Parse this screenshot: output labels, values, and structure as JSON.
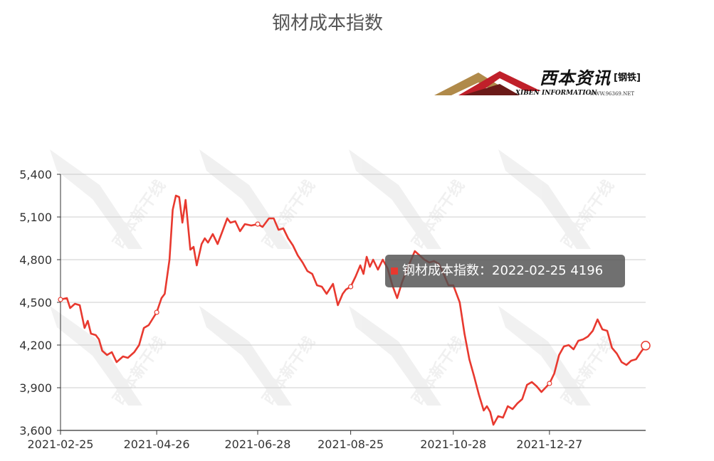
{
  "title": "钢材成本指数",
  "logo": {
    "cn": "西本资讯",
    "tag": "[钢铁]",
    "en": "XIBEN INFORMATION",
    "url": "WWW.96369.NET",
    "watermark": "西本新干线"
  },
  "tooltip": {
    "series": "钢材成本指数",
    "date": "2022-02-25",
    "value": "4196",
    "separator": "："
  },
  "chart_data": {
    "type": "line",
    "title": "钢材成本指数",
    "line_color": "#e8392f",
    "ylim": [
      3600,
      5400
    ],
    "yticks": [
      3600,
      3900,
      4200,
      4500,
      4800,
      5100,
      5400
    ],
    "ytick_labels": [
      "3,600",
      "3,900",
      "4,200",
      "4,500",
      "4,800",
      "5,100",
      "5,400"
    ],
    "xtick_labels": [
      "2021-02-25",
      "2021-04-26",
      "2021-06-28",
      "2021-08-25",
      "2021-10-28",
      "2021-12-27"
    ],
    "grid": true,
    "points": [
      [
        "2021-02-25",
        4520
      ],
      [
        "2021-03-01",
        4530
      ],
      [
        "2021-03-03",
        4460
      ],
      [
        "2021-03-06",
        4490
      ],
      [
        "2021-03-09",
        4480
      ],
      [
        "2021-03-12",
        4320
      ],
      [
        "2021-03-14",
        4370
      ],
      [
        "2021-03-16",
        4280
      ],
      [
        "2021-03-19",
        4270
      ],
      [
        "2021-03-21",
        4240
      ],
      [
        "2021-03-23",
        4160
      ],
      [
        "2021-03-26",
        4130
      ],
      [
        "2021-03-29",
        4150
      ],
      [
        "2021-04-01",
        4080
      ],
      [
        "2021-04-05",
        4120
      ],
      [
        "2021-04-08",
        4110
      ],
      [
        "2021-04-12",
        4150
      ],
      [
        "2021-04-15",
        4200
      ],
      [
        "2021-04-18",
        4320
      ],
      [
        "2021-04-21",
        4340
      ],
      [
        "2021-04-26",
        4430
      ],
      [
        "2021-04-29",
        4530
      ],
      [
        "2021-05-01",
        4560
      ],
      [
        "2021-05-04",
        4800
      ],
      [
        "2021-05-06",
        5150
      ],
      [
        "2021-05-08",
        5250
      ],
      [
        "2021-05-10",
        5240
      ],
      [
        "2021-05-12",
        5060
      ],
      [
        "2021-05-14",
        5220
      ],
      [
        "2021-05-17",
        4870
      ],
      [
        "2021-05-19",
        4890
      ],
      [
        "2021-05-21",
        4760
      ],
      [
        "2021-05-24",
        4910
      ],
      [
        "2021-05-26",
        4950
      ],
      [
        "2021-05-28",
        4920
      ],
      [
        "2021-05-31",
        4980
      ],
      [
        "2021-06-03",
        4910
      ],
      [
        "2021-06-06",
        5000
      ],
      [
        "2021-06-09",
        5090
      ],
      [
        "2021-06-11",
        5060
      ],
      [
        "2021-06-14",
        5070
      ],
      [
        "2021-06-17",
        5000
      ],
      [
        "2021-06-20",
        5050
      ],
      [
        "2021-06-24",
        5040
      ],
      [
        "2021-06-28",
        5050
      ],
      [
        "2021-07-01",
        5030
      ],
      [
        "2021-07-05",
        5090
      ],
      [
        "2021-07-08",
        5090
      ],
      [
        "2021-07-11",
        5010
      ],
      [
        "2021-07-14",
        5020
      ],
      [
        "2021-07-17",
        4950
      ],
      [
        "2021-07-20",
        4900
      ],
      [
        "2021-07-23",
        4830
      ],
      [
        "2021-07-26",
        4780
      ],
      [
        "2021-07-29",
        4720
      ],
      [
        "2021-08-01",
        4700
      ],
      [
        "2021-08-04",
        4620
      ],
      [
        "2021-08-07",
        4610
      ],
      [
        "2021-08-10",
        4560
      ],
      [
        "2021-08-14",
        4630
      ],
      [
        "2021-08-17",
        4480
      ],
      [
        "2021-08-20",
        4560
      ],
      [
        "2021-08-22",
        4590
      ],
      [
        "2021-08-25",
        4610
      ],
      [
        "2021-08-28",
        4680
      ],
      [
        "2021-08-31",
        4760
      ],
      [
        "2021-09-02",
        4700
      ],
      [
        "2021-09-04",
        4820
      ],
      [
        "2021-09-06",
        4750
      ],
      [
        "2021-09-08",
        4800
      ],
      [
        "2021-09-11",
        4730
      ],
      [
        "2021-09-14",
        4800
      ],
      [
        "2021-09-17",
        4740
      ],
      [
        "2021-09-20",
        4620
      ],
      [
        "2021-09-23",
        4530
      ],
      [
        "2021-09-26",
        4640
      ],
      [
        "2021-09-29",
        4730
      ],
      [
        "2021-10-01",
        4780
      ],
      [
        "2021-10-04",
        4860
      ],
      [
        "2021-10-07",
        4830
      ],
      [
        "2021-10-10",
        4800
      ],
      [
        "2021-10-13",
        4780
      ],
      [
        "2021-10-16",
        4790
      ],
      [
        "2021-10-19",
        4770
      ],
      [
        "2021-10-22",
        4700
      ],
      [
        "2021-10-25",
        4620
      ],
      [
        "2021-10-28",
        4620
      ],
      [
        "2021-11-01",
        4500
      ],
      [
        "2021-11-04",
        4280
      ],
      [
        "2021-11-07",
        4100
      ],
      [
        "2021-11-10",
        3980
      ],
      [
        "2021-11-13",
        3850
      ],
      [
        "2021-11-16",
        3740
      ],
      [
        "2021-11-18",
        3770
      ],
      [
        "2021-11-20",
        3730
      ],
      [
        "2021-11-22",
        3640
      ],
      [
        "2021-11-25",
        3700
      ],
      [
        "2021-11-28",
        3690
      ],
      [
        "2021-12-01",
        3770
      ],
      [
        "2021-12-04",
        3750
      ],
      [
        "2021-12-07",
        3790
      ],
      [
        "2021-12-10",
        3820
      ],
      [
        "2021-12-13",
        3920
      ],
      [
        "2021-12-16",
        3940
      ],
      [
        "2021-12-19",
        3910
      ],
      [
        "2021-12-22",
        3870
      ],
      [
        "2021-12-27",
        3930
      ],
      [
        "2021-12-30",
        4000
      ],
      [
        "2022-01-02",
        4130
      ],
      [
        "2022-01-05",
        4190
      ],
      [
        "2022-01-08",
        4200
      ],
      [
        "2022-01-11",
        4170
      ],
      [
        "2022-01-14",
        4230
      ],
      [
        "2022-01-17",
        4240
      ],
      [
        "2022-01-20",
        4260
      ],
      [
        "2022-01-23",
        4300
      ],
      [
        "2022-01-26",
        4380
      ],
      [
        "2022-01-29",
        4310
      ],
      [
        "2022-02-01",
        4300
      ],
      [
        "2022-02-04",
        4180
      ],
      [
        "2022-02-07",
        4140
      ],
      [
        "2022-02-10",
        4080
      ],
      [
        "2022-02-13",
        4060
      ],
      [
        "2022-02-16",
        4090
      ],
      [
        "2022-02-19",
        4100
      ],
      [
        "2022-02-22",
        4150
      ],
      [
        "2022-02-25",
        4196
      ]
    ],
    "marked_points": [
      "2021-02-25",
      "2021-04-26",
      "2021-06-28",
      "2021-08-25",
      "2021-12-27",
      "2022-02-25"
    ]
  }
}
